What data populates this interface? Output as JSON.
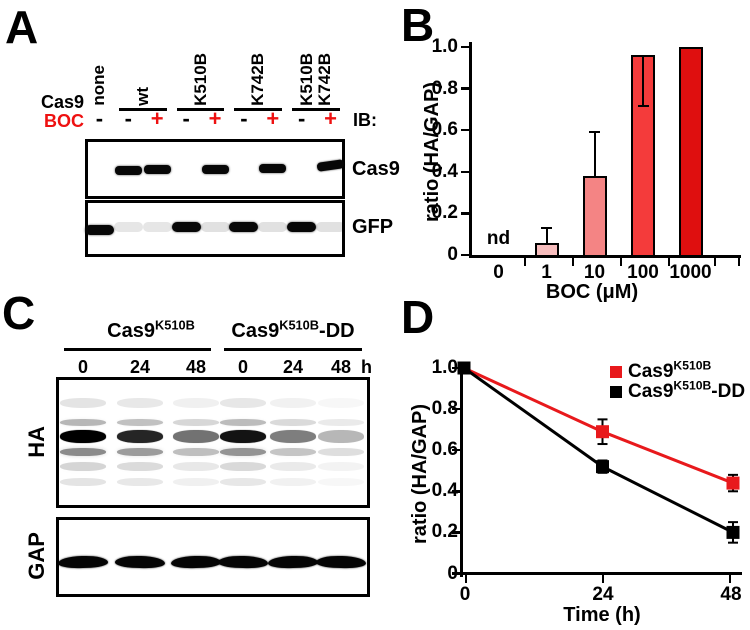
{
  "panels": {
    "a": "A",
    "b": "B",
    "c": "C",
    "d": "D"
  },
  "colors": {
    "red_text": "#EE1111",
    "black": "#000000"
  },
  "panel_a": {
    "row_label_cas9": "Cas9",
    "row_label_boc": "BOC",
    "ib_label": "IB:",
    "lane_groups": [
      {
        "lines": [
          "none"
        ],
        "span": 1,
        "underline": false
      },
      {
        "lines": [
          "wt"
        ],
        "span": 2,
        "underline": true
      },
      {
        "lines": [
          "K510B"
        ],
        "span": 2,
        "underline": true
      },
      {
        "lines": [
          "K742B"
        ],
        "span": 2,
        "underline": true
      },
      {
        "lines": [
          "K510B",
          "K742B"
        ],
        "span": 2,
        "underline": true
      }
    ],
    "boc_symbols": [
      "-",
      "-",
      "+",
      "-",
      "+",
      "-",
      "+",
      "-",
      "+"
    ],
    "blots": [
      {
        "label": "Cas9",
        "bands": [
          {
            "lane": 2,
            "i": 1
          },
          {
            "lane": 3,
            "i": 1
          },
          {
            "lane": 5,
            "i": 1
          },
          {
            "lane": 7,
            "i": 1
          },
          {
            "lane": 9,
            "i": 1
          }
        ]
      },
      {
        "label": "GFP",
        "bands": [
          {
            "lane": 1,
            "i": 1
          },
          {
            "lane": 2,
            "i": 0.1
          },
          {
            "lane": 3,
            "i": 0.1
          },
          {
            "lane": 4,
            "i": 1
          },
          {
            "lane": 5,
            "i": 0.12
          },
          {
            "lane": 6,
            "i": 1
          },
          {
            "lane": 7,
            "i": 0.12
          },
          {
            "lane": 8,
            "i": 1
          },
          {
            "lane": 9,
            "i": 0.12
          }
        ]
      }
    ]
  },
  "panel_c": {
    "groups": [
      {
        "base": "Cas9",
        "sup": "K510B",
        "suffix": ""
      },
      {
        "base": "Cas9",
        "sup": "K510B",
        "suffix": "-DD"
      }
    ],
    "time_labels": [
      "0",
      "24",
      "48",
      "0",
      "24",
      "48"
    ],
    "time_unit": "h",
    "blots": [
      {
        "label": "HA",
        "band_intensities": [
          1.0,
          0.85,
          0.55,
          0.92,
          0.5,
          0.28
        ]
      },
      {
        "label": "GAP",
        "band_intensities": [
          1,
          1,
          1,
          1,
          1,
          1
        ]
      }
    ]
  },
  "chart_data": [
    {
      "type": "bar",
      "panel": "B",
      "categories": [
        "0",
        "1",
        "10",
        "100",
        "1000"
      ],
      "values": [
        null,
        0.06,
        0.38,
        0.96,
        1.0
      ],
      "errors": [
        null,
        0.07,
        0.21,
        0.24,
        null
      ],
      "error_directions": [
        null,
        "up",
        "up",
        "down",
        null
      ],
      "bar_colors": [
        "#FFFFFF",
        "#F7BDBD",
        "#F48484",
        "#F43B3B",
        "#DF0F0F"
      ],
      "no_data_label": "nd",
      "xlabel": "BOC (μM)",
      "ylabel": "ratio (HA/GAP)",
      "yticks": [
        0,
        0.2,
        0.4,
        0.6,
        0.8,
        1.0
      ],
      "ytick_labels": [
        "0",
        "0.2",
        "0.4",
        "0.6",
        "0.8",
        "1.0"
      ],
      "ylim": [
        0,
        1.0
      ],
      "grid": false
    },
    {
      "type": "line",
      "panel": "D",
      "x": [
        0,
        24,
        48
      ],
      "xtick_labels": [
        "0",
        "24",
        "48"
      ],
      "series": [
        {
          "name_base": "Cas9",
          "name_sup": "K510B",
          "name_suffix": "",
          "color": "#E8191C",
          "marker": "square",
          "values": [
            1.0,
            0.69,
            0.44
          ],
          "errors": [
            0,
            0.06,
            0.04
          ]
        },
        {
          "name_base": "Cas9",
          "name_sup": "K510B",
          "name_suffix": "-DD",
          "color": "#000000",
          "marker": "square",
          "values": [
            1.0,
            0.52,
            0.2
          ],
          "errors": [
            0,
            0.03,
            0.05
          ]
        }
      ],
      "xlabel": "Time (h)",
      "ylabel": "ratio (HA/GAP)",
      "yticks": [
        0,
        0.2,
        0.4,
        0.6,
        0.8,
        1.0
      ],
      "ytick_labels": [
        "0",
        "0.2",
        "0.4",
        "0.6",
        "0.8",
        "1.0"
      ],
      "ylim": [
        0,
        1.0
      ],
      "legend_position": "top-right",
      "grid": false
    }
  ]
}
